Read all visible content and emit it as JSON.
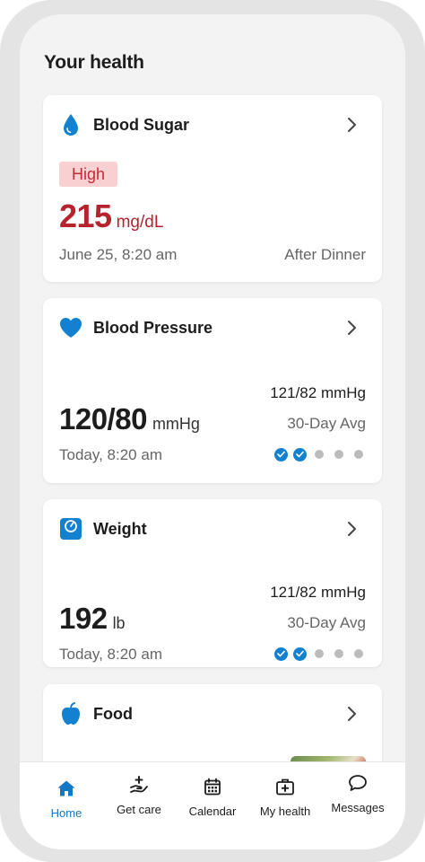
{
  "page": {
    "title": "Your health"
  },
  "cards": {
    "blood_sugar": {
      "title": "Blood Sugar",
      "icon": "water-drop-icon",
      "status": "High",
      "value": "215",
      "unit": "mg/dL",
      "timestamp": "June 25, 8:20 am",
      "context": "After Dinner"
    },
    "blood_pressure": {
      "title": "Blood Pressure",
      "icon": "heart-icon",
      "value": "120/80",
      "unit": "mmHg",
      "avg_value": "121/82 mmHg",
      "avg_label": "30-Day Avg",
      "timestamp": "Today, 8:20 am",
      "progress_done": 2,
      "progress_total": 5
    },
    "weight": {
      "title": "Weight",
      "icon": "scale-icon",
      "value": "192",
      "unit": "lb",
      "avg_value": "121/82 mmHg",
      "avg_label": "30-Day Avg",
      "timestamp": "Today, 8:20 am",
      "progress_done": 2,
      "progress_total": 5
    },
    "food": {
      "title": "Food",
      "icon": "apple-icon"
    }
  },
  "nav": {
    "items": [
      {
        "label": "Home",
        "icon": "home-icon",
        "active": true
      },
      {
        "label": "Get care",
        "icon": "care-hand-icon",
        "active": false
      },
      {
        "label": "Calendar",
        "icon": "calendar-icon",
        "active": false
      },
      {
        "label": "My health",
        "icon": "medical-kit-icon",
        "active": false
      },
      {
        "label": "Messages",
        "icon": "chat-bubble-icon",
        "active": false
      }
    ]
  },
  "colors": {
    "accent": "#1481d0",
    "high_text": "#b6232d",
    "high_badge_bg": "#f9d0d2",
    "active_nav": "#1277c4"
  }
}
